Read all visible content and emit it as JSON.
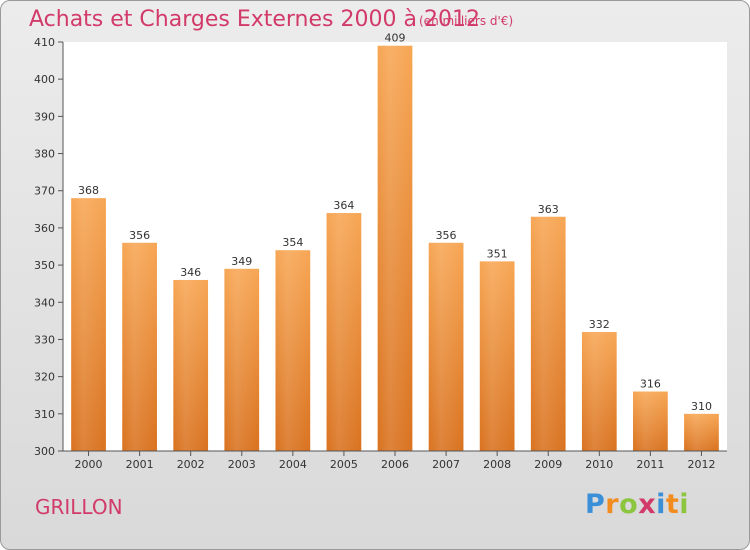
{
  "header": {
    "title": "Achats et Charges Externes 2000 à 2012",
    "subtitle": "(en milliers d'€)"
  },
  "footer": {
    "city": "GRILLON",
    "logo_letters": [
      {
        "char": "P",
        "color": "#3a8fd8"
      },
      {
        "char": "r",
        "color": "#f28c1e"
      },
      {
        "char": "o",
        "color": "#8cc63f"
      },
      {
        "char": "x",
        "color": "#d23a6a"
      },
      {
        "char": "i",
        "color": "#3a8fd8"
      },
      {
        "char": "t",
        "color": "#f28c1e"
      },
      {
        "char": "i",
        "color": "#8cc63f"
      }
    ]
  },
  "chart_data": {
    "type": "bar",
    "title": "Achats et Charges Externes 2000 à 2012",
    "subtitle": "(en milliers d'€)",
    "xlabel": "",
    "ylabel": "",
    "categories": [
      "2000",
      "2001",
      "2002",
      "2003",
      "2004",
      "2005",
      "2006",
      "2007",
      "2008",
      "2009",
      "2010",
      "2011",
      "2012"
    ],
    "values": [
      368,
      356,
      346,
      349,
      354,
      364,
      409,
      356,
      351,
      363,
      332,
      316,
      310
    ],
    "data_labels": [
      "368",
      "356",
      "346",
      "349",
      "354",
      "364",
      "409",
      "356",
      "351",
      "363",
      "332",
      "316",
      "310"
    ],
    "ylim": [
      300,
      410
    ],
    "yticks": [
      300,
      310,
      320,
      330,
      340,
      350,
      360,
      370,
      380,
      390,
      400,
      410
    ],
    "grid": false,
    "legend": "none",
    "bar_color_top": "#f7a654",
    "bar_color_bottom": "#d9721f"
  }
}
